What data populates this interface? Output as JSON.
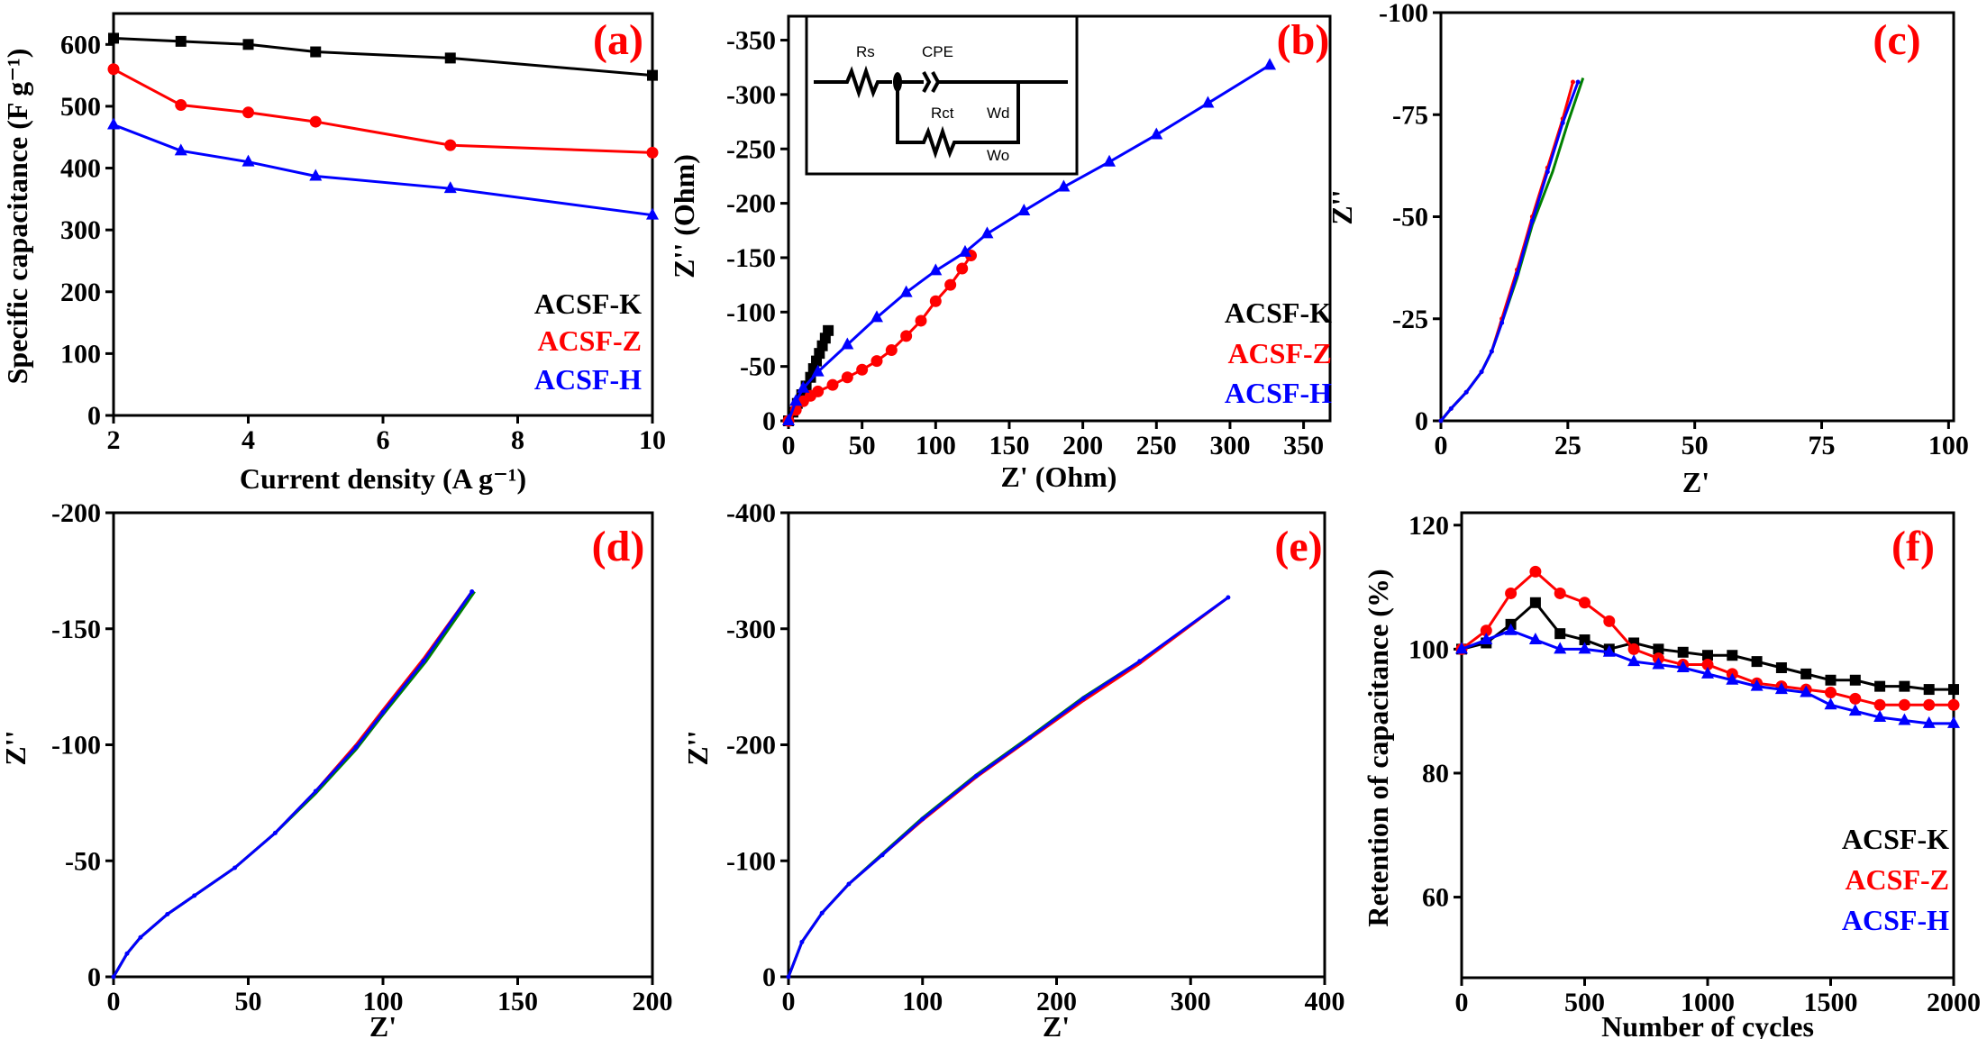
{
  "colors": {
    "ACSF-K": "#000000",
    "ACSF-Z": "#ff0000",
    "ACSF-H": "#0000ff",
    "fit_green": "#008000",
    "panel_label": "#ff0000"
  },
  "inset_circuit": {
    "labels": [
      "Rs",
      "CPE",
      "Rct",
      "Wd",
      "Wo"
    ]
  },
  "chart_data": [
    {
      "id": "a",
      "panel_label": "(a)",
      "type": "line",
      "xlabel": "Current density (A g⁻¹)",
      "ylabel": "Specific capacitance (F g⁻¹)",
      "xlim": [
        2,
        10
      ],
      "ylim": [
        0,
        650
      ],
      "xticks": [
        2,
        4,
        6,
        8,
        10
      ],
      "yticks": [
        0,
        100,
        200,
        300,
        400,
        500,
        600
      ],
      "legend": "bottom-right",
      "grid": false,
      "x": [
        2,
        3,
        4,
        5,
        7,
        10
      ],
      "series": [
        {
          "name": "ACSF-K",
          "color": "#000000",
          "marker": "square",
          "values": [
            610,
            605,
            600,
            588,
            578,
            550
          ]
        },
        {
          "name": "ACSF-Z",
          "color": "#ff0000",
          "marker": "circle",
          "values": [
            560,
            502,
            490,
            475,
            437,
            425
          ]
        },
        {
          "name": "ACSF-H",
          "color": "#0000ff",
          "marker": "triangle",
          "values": [
            470,
            428,
            410,
            387,
            367,
            324
          ]
        }
      ]
    },
    {
      "id": "b",
      "panel_label": "(b)",
      "type": "line",
      "xlabel": "Z' (Ohm)",
      "ylabel": "Z'' (Ohm)",
      "xlim": [
        0,
        368
      ],
      "ylim": [
        0,
        -372
      ],
      "xticks": [
        0,
        50,
        100,
        150,
        200,
        250,
        300,
        350
      ],
      "yticks": [
        0,
        -50,
        -100,
        -150,
        -200,
        -250,
        -300,
        -350
      ],
      "legend": "right",
      "grid": false,
      "series": [
        {
          "name": "ACSF-K",
          "color": "#000000",
          "marker": "square",
          "points": [
            [
              0,
              0
            ],
            [
              3,
              -8
            ],
            [
              6,
              -16
            ],
            [
              9,
              -24
            ],
            [
              12,
              -32
            ],
            [
              15,
              -40
            ],
            [
              17,
              -48
            ],
            [
              19,
              -55
            ],
            [
              21,
              -62
            ],
            [
              23,
              -69
            ],
            [
              25,
              -76
            ],
            [
              27,
              -83
            ]
          ]
        },
        {
          "name": "ACSF-Z",
          "color": "#ff0000",
          "marker": "circle",
          "points": [
            [
              0,
              0
            ],
            [
              5,
              -10
            ],
            [
              10,
              -18
            ],
            [
              15,
              -23
            ],
            [
              20,
              -27
            ],
            [
              30,
              -33
            ],
            [
              40,
              -40
            ],
            [
              50,
              -47
            ],
            [
              60,
              -55
            ],
            [
              70,
              -65
            ],
            [
              80,
              -78
            ],
            [
              90,
              -92
            ],
            [
              100,
              -110
            ],
            [
              110,
              -125
            ],
            [
              118,
              -140
            ],
            [
              124,
              -152
            ]
          ]
        },
        {
          "name": "ACSF-H",
          "color": "#0000ff",
          "marker": "triangle",
          "points": [
            [
              0,
              0
            ],
            [
              5,
              -18
            ],
            [
              10,
              -30
            ],
            [
              20,
              -45
            ],
            [
              40,
              -70
            ],
            [
              60,
              -95
            ],
            [
              80,
              -118
            ],
            [
              100,
              -138
            ],
            [
              120,
              -155
            ],
            [
              135,
              -172
            ],
            [
              160,
              -193
            ],
            [
              187,
              -215
            ],
            [
              218,
              -238
            ],
            [
              250,
              -263
            ],
            [
              285,
              -292
            ],
            [
              327,
              -327
            ]
          ]
        }
      ]
    },
    {
      "id": "c",
      "panel_label": "(c)",
      "type": "line",
      "xlabel": "Z'",
      "ylabel": "Z''",
      "xlim": [
        0,
        101
      ],
      "ylim": [
        0,
        -100
      ],
      "xticks": [
        0,
        25,
        50,
        75,
        100
      ],
      "yticks": [
        0,
        -25,
        -50,
        -75,
        -100
      ],
      "grid": false,
      "series": [
        {
          "color": "#ff0000",
          "marker": "dot",
          "points": [
            [
              0,
              0
            ],
            [
              2,
              -3
            ],
            [
              5,
              -7
            ],
            [
              8,
              -12
            ],
            [
              10,
              -17
            ],
            [
              12,
              -25
            ],
            [
              15,
              -37
            ],
            [
              18,
              -50
            ],
            [
              21,
              -62
            ],
            [
              24,
              -74
            ],
            [
              26,
              -83
            ]
          ]
        },
        {
          "color": "#008000",
          "marker": "none",
          "points": [
            [
              0,
              0
            ],
            [
              2,
              -3
            ],
            [
              5,
              -7
            ],
            [
              8,
              -12
            ],
            [
              10,
              -17
            ],
            [
              12,
              -24
            ],
            [
              15,
              -35
            ],
            [
              18,
              -48
            ],
            [
              22,
              -61
            ],
            [
              25,
              -73
            ],
            [
              28,
              -84
            ]
          ]
        },
        {
          "color": "#0000ff",
          "marker": "dot",
          "points": [
            [
              0,
              0
            ],
            [
              2,
              -3
            ],
            [
              5,
              -7
            ],
            [
              8,
              -12
            ],
            [
              10,
              -17
            ],
            [
              12,
              -24
            ],
            [
              15,
              -36
            ],
            [
              18,
              -49
            ],
            [
              21,
              -61
            ],
            [
              24,
              -73
            ],
            [
              27,
              -83
            ]
          ]
        }
      ]
    },
    {
      "id": "d",
      "panel_label": "(d)",
      "type": "line",
      "xlabel": "Z'",
      "ylabel": "Z''",
      "xlim": [
        0,
        200
      ],
      "ylim": [
        0,
        -200
      ],
      "xticks": [
        0,
        50,
        100,
        150,
        200
      ],
      "yticks": [
        0,
        -50,
        -100,
        -150,
        -200
      ],
      "grid": false,
      "series": [
        {
          "color": "#ff0000",
          "marker": "none",
          "points": [
            [
              0,
              0
            ],
            [
              5,
              -10
            ],
            [
              10,
              -17
            ],
            [
              20,
              -27
            ],
            [
              30,
              -35
            ],
            [
              45,
              -47
            ],
            [
              60,
              -62
            ],
            [
              75,
              -80
            ],
            [
              90,
              -100
            ],
            [
              100,
              -115
            ],
            [
              115,
              -137
            ],
            [
              133,
              -166
            ]
          ]
        },
        {
          "color": "#008000",
          "marker": "none",
          "points": [
            [
              0,
              0
            ],
            [
              5,
              -10
            ],
            [
              10,
              -17
            ],
            [
              20,
              -27
            ],
            [
              30,
              -35
            ],
            [
              45,
              -47
            ],
            [
              60,
              -62
            ],
            [
              75,
              -79
            ],
            [
              90,
              -98
            ],
            [
              100,
              -113
            ],
            [
              116,
              -136
            ],
            [
              134,
              -166
            ]
          ]
        },
        {
          "color": "#0000ff",
          "marker": "dot",
          "points": [
            [
              0,
              0
            ],
            [
              5,
              -10
            ],
            [
              10,
              -17
            ],
            [
              20,
              -27
            ],
            [
              30,
              -35
            ],
            [
              45,
              -47
            ],
            [
              60,
              -62
            ],
            [
              75,
              -80
            ],
            [
              90,
              -99
            ],
            [
              100,
              -114
            ],
            [
              115,
              -136
            ],
            [
              133,
              -166
            ]
          ]
        }
      ]
    },
    {
      "id": "e",
      "panel_label": "(e)",
      "type": "line",
      "xlabel": "Z'",
      "ylabel": "Z''",
      "xlim": [
        0,
        400
      ],
      "ylim": [
        0,
        -400
      ],
      "xticks": [
        0,
        100,
        200,
        300,
        400
      ],
      "yticks": [
        0,
        -100,
        -200,
        -300,
        -400
      ],
      "grid": false,
      "series": [
        {
          "color": "#ff0000",
          "marker": "none",
          "points": [
            [
              0,
              0
            ],
            [
              10,
              -30
            ],
            [
              25,
              -55
            ],
            [
              45,
              -80
            ],
            [
              70,
              -105
            ],
            [
              100,
              -135
            ],
            [
              140,
              -172
            ],
            [
              180,
              -205
            ],
            [
              220,
              -238
            ],
            [
              262,
              -270
            ],
            [
              328,
              -327
            ]
          ]
        },
        {
          "color": "#008000",
          "marker": "none",
          "points": [
            [
              0,
              0
            ],
            [
              10,
              -30
            ],
            [
              25,
              -55
            ],
            [
              45,
              -80
            ],
            [
              70,
              -106
            ],
            [
              100,
              -137
            ],
            [
              140,
              -174
            ],
            [
              180,
              -207
            ],
            [
              220,
              -241
            ],
            [
              262,
              -272
            ]
          ]
        },
        {
          "color": "#0000ff",
          "marker": "dot",
          "points": [
            [
              0,
              0
            ],
            [
              10,
              -30
            ],
            [
              25,
              -55
            ],
            [
              45,
              -80
            ],
            [
              70,
              -105
            ],
            [
              100,
              -136
            ],
            [
              140,
              -173
            ],
            [
              180,
              -206
            ],
            [
              220,
              -240
            ],
            [
              262,
              -272
            ],
            [
              328,
              -327
            ]
          ]
        }
      ]
    },
    {
      "id": "f",
      "panel_label": "(f)",
      "type": "line",
      "xlabel": "Number of cycles",
      "ylabel": "Retention of capacitance (%)",
      "xlim": [
        0,
        2000
      ],
      "ylim": [
        47,
        122
      ],
      "xticks": [
        0,
        500,
        1000,
        1500,
        2000
      ],
      "yticks": [
        60,
        80,
        100,
        120
      ],
      "legend": "bottom-right",
      "grid": false,
      "x": [
        0,
        100,
        200,
        300,
        400,
        500,
        600,
        700,
        800,
        900,
        1000,
        1100,
        1200,
        1300,
        1400,
        1500,
        1600,
        1700,
        1800,
        1900,
        2000
      ],
      "series": [
        {
          "name": "ACSF-K",
          "color": "#000000",
          "marker": "square",
          "values": [
            100,
            101,
            104,
            107.5,
            102.5,
            101.5,
            100,
            101,
            100,
            99.5,
            99,
            99,
            98,
            97,
            96,
            95,
            95,
            94,
            94,
            93.5,
            93.5
          ]
        },
        {
          "name": "ACSF-Z",
          "color": "#ff0000",
          "marker": "circle",
          "values": [
            100,
            103,
            109,
            112.5,
            109,
            107.5,
            104.5,
            100,
            98.5,
            97.5,
            97.5,
            96,
            94.5,
            94,
            93.5,
            93,
            92,
            91,
            91,
            91,
            91
          ]
        },
        {
          "name": "ACSF-H",
          "color": "#0000ff",
          "marker": "triangle",
          "values": [
            100,
            101.5,
            103,
            101.5,
            100,
            100,
            99.5,
            98,
            97.5,
            97,
            96,
            95,
            94,
            93.5,
            93,
            91,
            90,
            89,
            88.5,
            88,
            88
          ]
        }
      ]
    }
  ]
}
